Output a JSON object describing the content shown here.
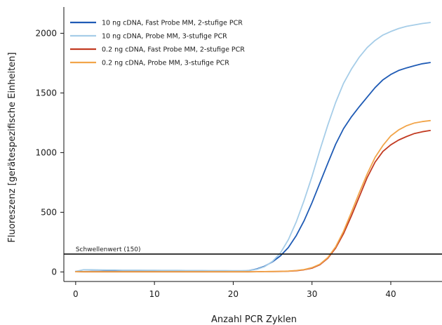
{
  "chart_data": {
    "type": "line",
    "title": "",
    "xlabel": "Anzahl PCR Zyklen",
    "ylabel": "Fluoreszenz [gerätespezifische Einheiten]",
    "xlim": [
      -1.5,
      46.5
    ],
    "ylim": [
      -80,
      2220
    ],
    "xticks": [
      0,
      10,
      20,
      30,
      40
    ],
    "yticks": [
      0,
      500,
      1000,
      1500,
      2000
    ],
    "grid": false,
    "legend_position": "top-left",
    "threshold": {
      "label": "Schwellenwert (150)",
      "value": 150,
      "color": "#111111"
    },
    "x": [
      0,
      1,
      2,
      3,
      4,
      5,
      6,
      7,
      8,
      9,
      10,
      11,
      12,
      13,
      14,
      15,
      16,
      17,
      18,
      19,
      20,
      21,
      22,
      23,
      24,
      25,
      26,
      27,
      28,
      29,
      30,
      31,
      32,
      33,
      34,
      35,
      36,
      37,
      38,
      39,
      40,
      41,
      42,
      43,
      44,
      45
    ],
    "series": [
      {
        "name": "10 ng cDNA, Fast Probe MM, 2-stufige PCR",
        "color": "#1f5bb5",
        "values": [
          5,
          3,
          4,
          5,
          6,
          6,
          5,
          5,
          4,
          4,
          4,
          5,
          5,
          4,
          4,
          4,
          5,
          5,
          4,
          4,
          4,
          5,
          12,
          25,
          48,
          85,
          135,
          205,
          305,
          430,
          580,
          745,
          910,
          1070,
          1200,
          1300,
          1385,
          1465,
          1545,
          1610,
          1655,
          1688,
          1710,
          1728,
          1745,
          1755
        ]
      },
      {
        "name": "10 ng cDNA, Probe MM, 3-stufige PCR",
        "color": "#a6cde8",
        "values": [
          5,
          18,
          18,
          17,
          16,
          16,
          15,
          15,
          15,
          14,
          14,
          13,
          13,
          13,
          12,
          12,
          12,
          11,
          11,
          11,
          10,
          10,
          12,
          22,
          45,
          90,
          160,
          270,
          420,
          600,
          800,
          1020,
          1230,
          1420,
          1580,
          1700,
          1800,
          1880,
          1940,
          1985,
          2015,
          2040,
          2058,
          2070,
          2082,
          2090
        ]
      },
      {
        "name": "0.2 ng cDNA, Fast Probe MM, 2-stufige PCR",
        "color": "#c23b22",
        "values": [
          2,
          1,
          1,
          1,
          1,
          1,
          1,
          1,
          1,
          1,
          1,
          1,
          1,
          1,
          1,
          1,
          1,
          1,
          1,
          1,
          1,
          1,
          1,
          2,
          3,
          3,
          4,
          6,
          10,
          18,
          32,
          60,
          115,
          200,
          320,
          470,
          630,
          790,
          920,
          1010,
          1065,
          1105,
          1135,
          1160,
          1175,
          1185
        ]
      },
      {
        "name": "0.2 ng cDNA, Probe MM, 3-stufige PCR",
        "color": "#f2a54a",
        "values": [
          2,
          1,
          1,
          1,
          1,
          1,
          1,
          1,
          1,
          1,
          1,
          1,
          1,
          1,
          1,
          1,
          1,
          1,
          1,
          1,
          1,
          1,
          1,
          2,
          3,
          4,
          5,
          7,
          12,
          20,
          36,
          65,
          120,
          210,
          340,
          500,
          665,
          820,
          960,
          1060,
          1140,
          1190,
          1225,
          1248,
          1260,
          1268
        ]
      }
    ]
  }
}
